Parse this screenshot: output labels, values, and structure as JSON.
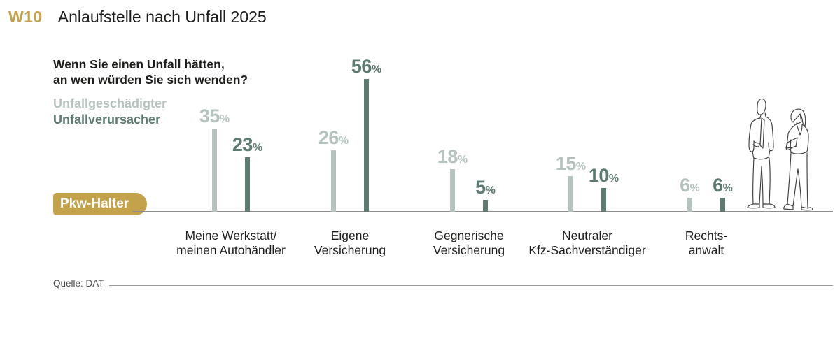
{
  "header": {
    "tag": "W10",
    "title": "Anlaufstelle nach Unfall 2025"
  },
  "question": [
    "Wenn Sie einen Unfall hätten,",
    "an wen würden Sie sich wenden?"
  ],
  "legend": [
    {
      "label": "Unfallgeschädigter",
      "color": "#b5c3be"
    },
    {
      "label": "Unfallverursacher",
      "color": "#5e7b72"
    }
  ],
  "axis_badge": "Pkw-Halter",
  "source": "Quelle: DAT",
  "colors": {
    "gold": "#c3a24b",
    "light": "#b5c3be",
    "dark": "#5e7b72",
    "text": "#1d1d1b",
    "baseline": "#8d8d8d",
    "source_line": "#9b9b9b",
    "badge_text": "#ffffff",
    "figure_stroke": "#3f3f3f"
  },
  "chart_data": {
    "type": "bar",
    "title": "Anlaufstelle nach Unfall 2025",
    "subtitle": "Wenn Sie einen Unfall hätten, an wen würden Sie sich wenden?",
    "unit": "%",
    "categories": [
      "Meine Werkstatt/ meinen Autohändler",
      "Eigene Versicherung",
      "Gegnerische Versicherung",
      "Neutraler Kfz-Sachverständiger",
      "Rechtsanwalt"
    ],
    "categories_lines": [
      [
        "Meine Werkstatt/",
        "meinen Autohändler"
      ],
      [
        "Eigene",
        "Versicherung"
      ],
      [
        "Gegnerische",
        "Versicherung"
      ],
      [
        "Neutraler",
        "Kfz-Sachverständiger"
      ],
      [
        "Rechts-",
        "anwalt"
      ]
    ],
    "series": [
      {
        "name": "Unfallgeschädigter",
        "values": [
          35,
          26,
          18,
          15,
          6
        ]
      },
      {
        "name": "Unfallverursacher",
        "values": [
          23,
          56,
          5,
          10,
          6
        ]
      }
    ],
    "group_axis_label": "Pkw-Halter",
    "ylim": [
      0,
      60
    ],
    "grid": false,
    "legend_position": "top-left",
    "source": "Quelle: DAT"
  }
}
